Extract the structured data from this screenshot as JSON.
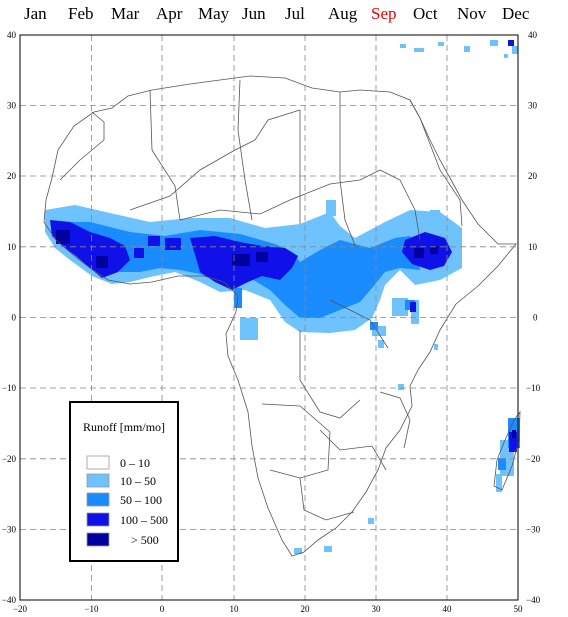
{
  "months": [
    {
      "label": "Jan",
      "selected": false
    },
    {
      "label": "Feb",
      "selected": false
    },
    {
      "label": "Mar",
      "selected": false
    },
    {
      "label": "Apr",
      "selected": false
    },
    {
      "label": "May",
      "selected": false
    },
    {
      "label": "Jun",
      "selected": false
    },
    {
      "label": "Jul",
      "selected": false
    },
    {
      "label": "Aug",
      "selected": false
    },
    {
      "label": "Sep",
      "selected": true
    },
    {
      "label": "Oct",
      "selected": false
    },
    {
      "label": "Nov",
      "selected": false
    },
    {
      "label": "Dec",
      "selected": false
    }
  ],
  "map": {
    "x_ticks": [
      "−20",
      "−10",
      "0",
      "10",
      "20",
      "30",
      "40",
      "50"
    ],
    "y_ticks_left": [
      "40",
      "30",
      "20",
      "10",
      "0",
      "−10",
      "−20",
      "−30",
      "−40"
    ],
    "y_ticks_right": [
      "40",
      "30",
      "20",
      "10",
      "0",
      "−10",
      "−20",
      "−30",
      "−40"
    ],
    "lon_range": [
      -20,
      50
    ],
    "lat_range": [
      -40,
      40
    ],
    "gridlines": true
  },
  "legend": {
    "title": "Runoff [mm/mo]",
    "items": [
      {
        "label": "0  –  10",
        "color": "#ffffff"
      },
      {
        "label": "10  –  50",
        "color": "#6ec3ff"
      },
      {
        "label": "50  –  100",
        "color": "#1a8cff"
      },
      {
        "label": "100  –  500",
        "color": "#1010e8"
      },
      {
        "label": "> 500",
        "color": "#0000a0"
      }
    ]
  }
}
